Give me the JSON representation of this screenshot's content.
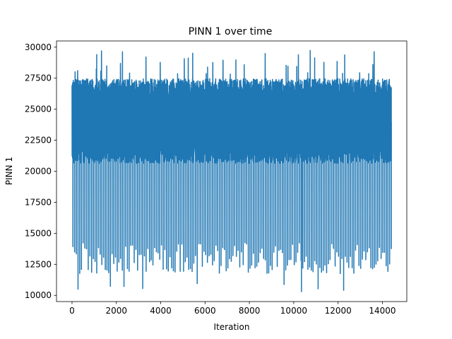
{
  "chart_data": {
    "type": "line",
    "title": "PINN 1 over time",
    "xlabel": "Iteration",
    "ylabel": "PINN 1",
    "xlim": [
      -700,
      15100
    ],
    "ylim": [
      9500,
      30500
    ],
    "xticks": [
      0,
      2000,
      4000,
      6000,
      8000,
      10000,
      12000,
      14000
    ],
    "yticks": [
      10000,
      12500,
      15000,
      17500,
      20000,
      22500,
      25000,
      27500,
      30000
    ],
    "grid": false,
    "legend": "none",
    "series": [
      {
        "color": "#1f77b4",
        "x_range": [
          0,
          14400
        ],
        "n_points": 14400,
        "baseline": 24000,
        "band_high": 27300,
        "band_low": 20800,
        "dip_period": 200,
        "dip_low_typical": 13000,
        "min_value": 10300,
        "min_at": 10350,
        "max_value": 29800,
        "max_at": 13400
      }
    ]
  }
}
